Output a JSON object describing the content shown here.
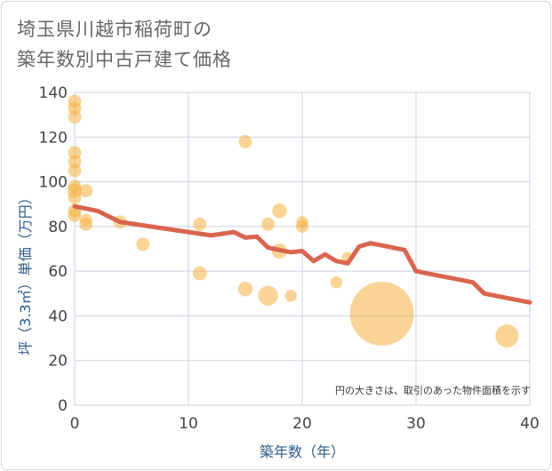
{
  "title_line1": "埼玉県川越市稲荷町の",
  "title_line2": "築年数別中古戸建て価格",
  "chart_data": {
    "type": "scatter",
    "title": "埼玉県川越市稲荷町の築年数別中古戸建て価格",
    "xlabel": "築年数（年）",
    "ylabel": "坪（3.3㎡）単価（万円）",
    "xlim": [
      0,
      40
    ],
    "ylim": [
      0,
      140
    ],
    "xticks": [
      0,
      10,
      20,
      30,
      40
    ],
    "yticks": [
      0,
      20,
      40,
      60,
      80,
      100,
      120,
      140
    ],
    "grid": true,
    "note": "円の大きさは、取引のあった物件面積を示す",
    "colors": {
      "bubble": "#f5b041",
      "line": "#d9654f",
      "grid": "#c8d3e0",
      "axis_text": "#2f5d8a"
    },
    "bubbles": [
      {
        "x": 0,
        "y": 136,
        "size": 1
      },
      {
        "x": 0,
        "y": 133,
        "size": 1
      },
      {
        "x": 0,
        "y": 129,
        "size": 1
      },
      {
        "x": 0,
        "y": 113,
        "size": 1
      },
      {
        "x": 0,
        "y": 109,
        "size": 1
      },
      {
        "x": 0,
        "y": 105,
        "size": 1
      },
      {
        "x": 0,
        "y": 98,
        "size": 1
      },
      {
        "x": 0,
        "y": 96,
        "size": 1.2
      },
      {
        "x": 0,
        "y": 93,
        "size": 1
      },
      {
        "x": 0,
        "y": 87,
        "size": 1
      },
      {
        "x": 0,
        "y": 85,
        "size": 1
      },
      {
        "x": 1,
        "y": 96,
        "size": 1
      },
      {
        "x": 1,
        "y": 83,
        "size": 0.8
      },
      {
        "x": 1,
        "y": 81,
        "size": 1
      },
      {
        "x": 4,
        "y": 82,
        "size": 1
      },
      {
        "x": 6,
        "y": 72,
        "size": 1
      },
      {
        "x": 11,
        "y": 81,
        "size": 1
      },
      {
        "x": 11,
        "y": 59,
        "size": 1.1
      },
      {
        "x": 15,
        "y": 118,
        "size": 1
      },
      {
        "x": 15,
        "y": 52,
        "size": 1.2
      },
      {
        "x": 17,
        "y": 81,
        "size": 1
      },
      {
        "x": 17,
        "y": 49,
        "size": 2.2
      },
      {
        "x": 18,
        "y": 87,
        "size": 1.2
      },
      {
        "x": 18,
        "y": 69,
        "size": 1.3
      },
      {
        "x": 19,
        "y": 49,
        "size": 0.8
      },
      {
        "x": 20,
        "y": 82,
        "size": 0.8
      },
      {
        "x": 20,
        "y": 80,
        "size": 0.9
      },
      {
        "x": 23,
        "y": 55,
        "size": 0.8
      },
      {
        "x": 24,
        "y": 66,
        "size": 0.8
      },
      {
        "x": 27,
        "y": 41,
        "size": 23
      },
      {
        "x": 38,
        "y": 31,
        "size": 3
      }
    ],
    "trend": {
      "x": [
        0,
        2,
        4,
        6,
        8,
        10,
        12,
        14,
        15,
        16,
        17,
        18,
        19,
        20,
        21,
        22,
        23,
        24,
        25,
        26,
        27,
        28,
        29,
        30,
        31,
        32,
        33,
        34,
        35,
        36,
        38,
        40
      ],
      "y": [
        89,
        87,
        82,
        80.5,
        79,
        77.5,
        76,
        77.5,
        75,
        75.5,
        70.5,
        69.5,
        68.5,
        69,
        64.5,
        67.5,
        64.5,
        63.5,
        71,
        72.5,
        71.5,
        70.5,
        69.5,
        60,
        59,
        58,
        57,
        56,
        55,
        50,
        48,
        46
      ]
    }
  }
}
